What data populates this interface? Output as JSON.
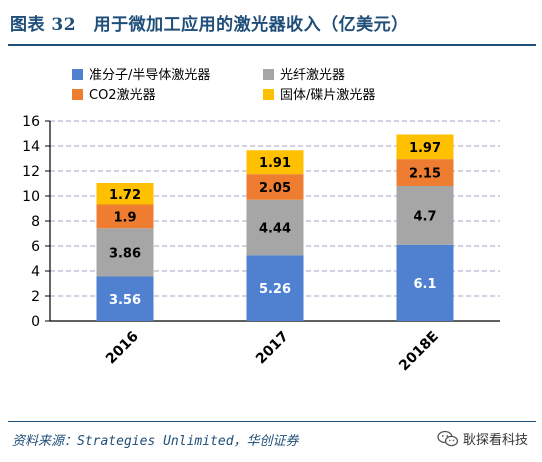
{
  "title": "图表 32　用于微加工应用的激光器收入（亿美元）",
  "source": "资料来源：Strategies Unlimited，华创证券",
  "watermark": {
    "text": "耿探看科技",
    "icon": "wechat-icon"
  },
  "colors": {
    "title": "#1f4e79",
    "semiconductor": "#4f81d0",
    "fiber": "#a6a6a6",
    "co2": "#ee7d31",
    "solid": "#ffc000",
    "grid": "#a6a6c4"
  },
  "chart_data": {
    "type": "bar",
    "stacked": true,
    "categories": [
      "2016",
      "2017",
      "2018E"
    ],
    "series": [
      {
        "name": "准分子/半导体激光器",
        "values": [
          3.56,
          5.26,
          6.1
        ],
        "color": "#4f81d0"
      },
      {
        "name": "光纤激光器",
        "values": [
          3.86,
          4.44,
          4.7
        ],
        "color": "#a6a6a6"
      },
      {
        "name": "CO2激光器",
        "values": [
          1.9,
          2.05,
          2.15
        ],
        "color": "#ee7d31"
      },
      {
        "name": "固体/碟片激光器",
        "values": [
          1.72,
          1.91,
          1.97
        ],
        "color": "#ffc000"
      }
    ],
    "data_labels": [
      [
        "3.56",
        "5.26",
        "6.1"
      ],
      [
        "3.86",
        "4.44",
        "4.7"
      ],
      [
        "1.9",
        "2.05",
        "2.15"
      ],
      [
        "1.72",
        "1.91",
        "1.97"
      ]
    ],
    "yticks": [
      "0",
      "2",
      "4",
      "6",
      "8",
      "10",
      "12",
      "14",
      "16"
    ],
    "ylim": [
      0,
      16
    ],
    "legend_position": "top",
    "grid": true
  }
}
